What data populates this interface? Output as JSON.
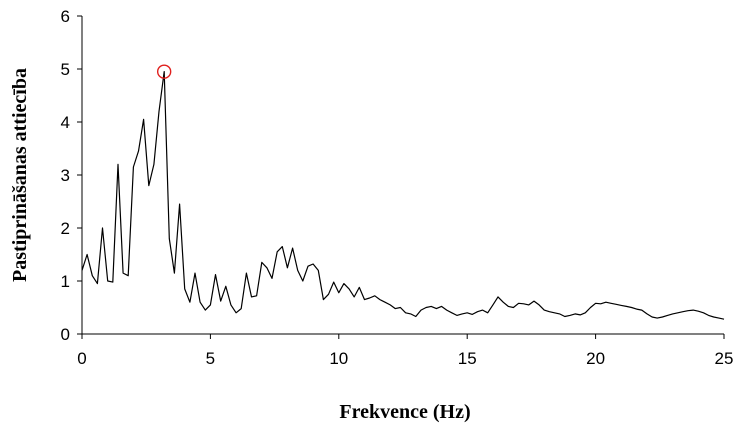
{
  "chart_data": {
    "type": "line",
    "title": "",
    "xlabel": "Frekvence (Hz)",
    "ylabel": "Pastiprināšanas attiecība",
    "xlim": [
      0,
      25
    ],
    "ylim": [
      0,
      6
    ],
    "xticks": [
      "0",
      "5",
      "10",
      "15",
      "20",
      "25"
    ],
    "yticks": [
      "0",
      "1",
      "2",
      "3",
      "4",
      "5",
      "6"
    ],
    "grid": false,
    "legend": "none",
    "line_color": "#000000",
    "marker_color": "#e0201e",
    "peak": {
      "x": 3.2,
      "y": 4.95
    },
    "series": [
      {
        "x": [
          0,
          0.2,
          0.4,
          0.6,
          0.8,
          1.0,
          1.2,
          1.4,
          1.6,
          1.8,
          2.0,
          2.2,
          2.4,
          2.6,
          2.8,
          3.0,
          3.2,
          3.4,
          3.6,
          3.8,
          4.0,
          4.2,
          4.4,
          4.6,
          4.8,
          5.0,
          5.2,
          5.4,
          5.6,
          5.8,
          6.0,
          6.2,
          6.4,
          6.6,
          6.8,
          7.0,
          7.2,
          7.4,
          7.6,
          7.8,
          8.0,
          8.2,
          8.4,
          8.6,
          8.8,
          9.0,
          9.2,
          9.4,
          9.6,
          9.8,
          10.0,
          10.2,
          10.4,
          10.6,
          10.8,
          11.0,
          11.2,
          11.4,
          11.6,
          11.8,
          12.0,
          12.2,
          12.4,
          12.6,
          12.8,
          13.0,
          13.2,
          13.4,
          13.6,
          13.8,
          14.0,
          14.2,
          14.4,
          14.6,
          14.8,
          15.0,
          15.2,
          15.4,
          15.6,
          15.8,
          16.0,
          16.2,
          16.4,
          16.6,
          16.8,
          17.0,
          17.2,
          17.4,
          17.6,
          17.8,
          18.0,
          18.2,
          18.4,
          18.6,
          18.8,
          19.0,
          19.2,
          19.4,
          19.6,
          19.8,
          20.0,
          20.2,
          20.4,
          20.6,
          20.8,
          21.0,
          21.2,
          21.4,
          21.6,
          21.8,
          22.0,
          22.2,
          22.4,
          22.6,
          22.8,
          23.0,
          23.2,
          23.4,
          23.6,
          23.8,
          24.0,
          24.2,
          24.4,
          24.6,
          24.8,
          25.0
        ],
        "y": [
          1.2,
          1.5,
          1.1,
          0.95,
          2.0,
          1.0,
          0.98,
          3.2,
          1.15,
          1.1,
          3.15,
          3.45,
          4.05,
          2.8,
          3.2,
          4.2,
          4.95,
          1.8,
          1.15,
          2.45,
          0.85,
          0.6,
          1.15,
          0.6,
          0.45,
          0.55,
          1.12,
          0.62,
          0.9,
          0.55,
          0.4,
          0.48,
          1.15,
          0.7,
          0.72,
          1.35,
          1.25,
          1.05,
          1.55,
          1.65,
          1.25,
          1.62,
          1.2,
          1.0,
          1.28,
          1.32,
          1.2,
          0.65,
          0.75,
          0.98,
          0.78,
          0.95,
          0.85,
          0.7,
          0.88,
          0.65,
          0.68,
          0.72,
          0.65,
          0.6,
          0.55,
          0.48,
          0.5,
          0.4,
          0.38,
          0.33,
          0.45,
          0.5,
          0.52,
          0.48,
          0.52,
          0.45,
          0.4,
          0.35,
          0.38,
          0.4,
          0.37,
          0.42,
          0.45,
          0.4,
          0.55,
          0.7,
          0.6,
          0.52,
          0.5,
          0.58,
          0.57,
          0.55,
          0.62,
          0.55,
          0.45,
          0.42,
          0.4,
          0.38,
          0.33,
          0.35,
          0.38,
          0.36,
          0.4,
          0.5,
          0.58,
          0.57,
          0.6,
          0.58,
          0.56,
          0.54,
          0.52,
          0.5,
          0.47,
          0.45,
          0.38,
          0.32,
          0.3,
          0.32,
          0.35,
          0.38,
          0.4,
          0.42,
          0.44,
          0.45,
          0.43,
          0.4,
          0.35,
          0.32,
          0.3,
          0.28
        ]
      }
    ]
  }
}
